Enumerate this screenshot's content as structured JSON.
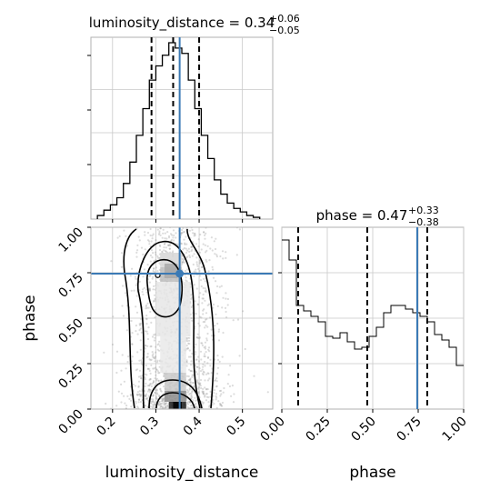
{
  "chart_data": {
    "type": "corner",
    "parameters": [
      "luminosity_distance",
      "phase"
    ],
    "truth_color": "#3b7ab5",
    "panels": {
      "luminosity_distance_hist": {
        "title": {
          "name": "luminosity_distance",
          "median": "0.34",
          "plus": "+0.06",
          "minus": "−0.05"
        },
        "xlim": [
          0.15,
          0.57
        ],
        "median": 0.34,
        "q16": 0.29,
        "q84": 0.4,
        "truth": 0.355,
        "bin_edges": [
          0.165,
          0.18,
          0.195,
          0.21,
          0.225,
          0.24,
          0.255,
          0.27,
          0.285,
          0.3,
          0.315,
          0.33,
          0.345,
          0.36,
          0.375,
          0.39,
          0.405,
          0.42,
          0.435,
          0.45,
          0.465,
          0.48,
          0.495,
          0.51,
          0.525,
          0.54
        ],
        "counts": [
          0.02,
          0.05,
          0.08,
          0.12,
          0.2,
          0.32,
          0.47,
          0.62,
          0.78,
          0.86,
          0.92,
          0.99,
          0.96,
          0.93,
          0.78,
          0.62,
          0.47,
          0.34,
          0.22,
          0.14,
          0.09,
          0.06,
          0.04,
          0.02,
          0.01
        ]
      },
      "phase_hist": {
        "title": {
          "name": "phase",
          "median": "0.47",
          "plus": "+0.33",
          "minus": "−0.38"
        },
        "xlim": [
          0.0,
          1.0
        ],
        "xticks": [
          "0.00",
          "0.25",
          "0.50",
          "0.75",
          "1.00"
        ],
        "median": 0.47,
        "q16": 0.09,
        "q84": 0.8,
        "truth": 0.745,
        "bin_edges": [
          0.0,
          0.04,
          0.08,
          0.12,
          0.16,
          0.2,
          0.24,
          0.28,
          0.32,
          0.36,
          0.4,
          0.44,
          0.48,
          0.52,
          0.56,
          0.6,
          0.64,
          0.68,
          0.72,
          0.76,
          0.8,
          0.84,
          0.88,
          0.92,
          0.96,
          1.0
        ],
        "counts": [
          0.93,
          0.82,
          0.57,
          0.54,
          0.51,
          0.48,
          0.4,
          0.39,
          0.42,
          0.37,
          0.33,
          0.34,
          0.4,
          0.45,
          0.53,
          0.57,
          0.57,
          0.55,
          0.53,
          0.51,
          0.48,
          0.41,
          0.38,
          0.34,
          0.24
        ]
      },
      "scatter_2d": {
        "xlabel": "luminosity_distance",
        "ylabel": "phase",
        "xlim": [
          0.15,
          0.57
        ],
        "ylim": [
          0.0,
          1.0
        ],
        "xticks": [
          "0.2",
          "0.3",
          "0.4",
          "0.5"
        ],
        "yticks": [
          "0.00",
          "0.25",
          "0.50",
          "0.75",
          "1.00"
        ],
        "truth": [
          0.355,
          0.745
        ],
        "contour_levels": [
          "inner",
          "mid",
          "outer"
        ]
      }
    }
  }
}
